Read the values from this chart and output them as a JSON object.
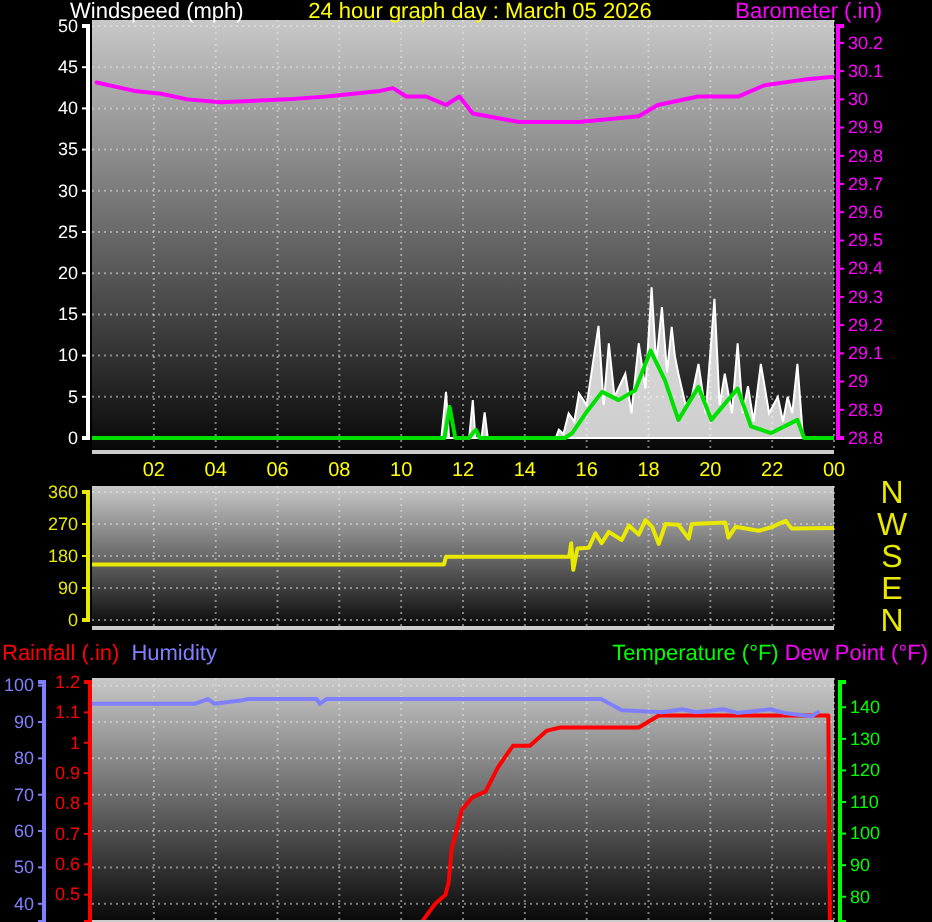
{
  "chart_data": [
    {
      "type": "line",
      "title": "24 hour graph day : March 05 2026",
      "ylabel": "Windspeed (mph)",
      "y2label": "Barometer (.in)",
      "xlim": [
        "2026-03-05T00:00",
        "2026-03-06T00:00"
      ],
      "xticks": [
        {
          "value": "2026-03-05T02:00",
          "label": "02"
        },
        {
          "value": "2026-03-05T04:00",
          "label": "04"
        },
        {
          "value": "2026-03-05T06:00",
          "label": "06"
        },
        {
          "value": "2026-03-05T08:00",
          "label": "08"
        },
        {
          "value": "2026-03-05T10:00",
          "label": "10"
        },
        {
          "value": "2026-03-05T12:00",
          "label": "12"
        },
        {
          "value": "2026-03-05T14:00",
          "label": "14"
        },
        {
          "value": "2026-03-05T16:00",
          "label": "16"
        },
        {
          "value": "2026-03-05T18:00",
          "label": "18"
        },
        {
          "value": "2026-03-05T20:00",
          "label": "20"
        },
        {
          "value": "2026-03-05T22:00",
          "label": "22"
        },
        {
          "value": "2026-03-06T00:00",
          "label": "00"
        }
      ],
      "ylim": [
        0,
        50
      ],
      "yticks": [
        0,
        5,
        10,
        15,
        20,
        25,
        30,
        35,
        40,
        45,
        50
      ],
      "y2lim": [
        28.8,
        30.26
      ],
      "y2ticks": [
        28.8,
        28.9,
        29,
        29.1,
        29.2,
        29.3,
        29.4,
        29.5,
        29.6,
        29.7,
        29.8,
        29.9,
        30,
        30.1,
        30.2
      ],
      "grid": true,
      "series": [
        {
          "type": "area",
          "color": "#ffffff",
          "x": [
            "2026-03-05T00:00",
            "2026-03-05T11:18",
            "2026-03-05T11:27",
            "2026-03-05T11:33",
            "2026-03-05T12:12",
            "2026-03-05T12:19",
            "2026-03-05T12:24",
            "2026-03-05T12:36",
            "2026-03-05T12:42",
            "2026-03-05T12:48",
            "2026-03-05T15:00",
            "2026-03-05T15:06",
            "2026-03-05T15:15",
            "2026-03-05T15:25",
            "2026-03-05T15:36",
            "2026-03-05T15:45",
            "2026-03-05T16:00",
            "2026-03-05T16:23",
            "2026-03-05T16:33",
            "2026-03-05T16:43",
            "2026-03-05T16:54",
            "2026-03-05T17:15",
            "2026-03-05T17:27",
            "2026-03-05T17:41",
            "2026-03-05T17:54",
            "2026-03-05T18:06",
            "2026-03-05T18:15",
            "2026-03-05T18:26",
            "2026-03-05T18:36",
            "2026-03-05T18:45",
            "2026-03-05T18:51",
            "2026-03-05T18:58",
            "2026-03-05T19:12",
            "2026-03-05T19:24",
            "2026-03-05T19:37",
            "2026-03-05T19:51",
            "2026-03-05T20:08",
            "2026-03-05T20:18",
            "2026-03-05T20:28",
            "2026-03-05T20:42",
            "2026-03-05T20:53",
            "2026-03-05T21:03",
            "2026-03-05T21:13",
            "2026-03-05T21:24",
            "2026-03-05T21:38",
            "2026-03-05T21:54",
            "2026-03-05T22:11",
            "2026-03-05T22:21",
            "2026-03-05T22:30",
            "2026-03-05T22:39",
            "2026-03-05T22:49",
            "2026-03-05T23:00",
            "2026-03-06T00:00"
          ],
          "values": [
            0,
            0,
            5.6,
            0,
            0,
            4.6,
            0,
            0,
            3.1,
            0,
            0,
            1,
            0.5,
            3,
            2,
            5.4,
            4,
            13.6,
            4,
            11.5,
            5,
            7.8,
            3,
            11.5,
            6,
            18.3,
            9,
            15.9,
            8,
            13.5,
            10,
            7.8,
            4,
            5,
            9,
            3,
            16.9,
            4,
            7.8,
            3,
            11.5,
            3,
            6.3,
            2,
            9,
            3,
            5,
            2,
            5,
            3,
            9,
            0,
            0
          ]
        },
        {
          "color": "#00e000",
          "x": [
            "2026-03-05T00:00",
            "2026-03-05T11:24",
            "2026-03-05T11:34",
            "2026-03-05T11:45",
            "2026-03-05T12:12",
            "2026-03-05T12:19",
            "2026-03-05T12:25",
            "2026-03-05T12:33",
            "2026-03-05T15:18",
            "2026-03-05T15:32",
            "2026-03-05T15:58",
            "2026-03-05T16:30",
            "2026-03-05T17:02",
            "2026-03-05T17:34",
            "2026-03-05T18:04",
            "2026-03-05T18:32",
            "2026-03-05T18:58",
            "2026-03-05T19:37",
            "2026-03-05T20:02",
            "2026-03-05T20:53",
            "2026-03-05T21:19",
            "2026-03-05T21:58",
            "2026-03-05T22:49",
            "2026-03-05T23:02",
            "2026-03-06T00:00"
          ],
          "values": [
            0,
            0,
            3.8,
            0,
            0,
            0.6,
            1,
            0,
            0,
            0.6,
            3,
            5.6,
            4.6,
            5.8,
            10.6,
            7,
            2.2,
            6.2,
            2.2,
            6,
            1.4,
            0.6,
            2.2,
            0,
            0
          ]
        },
        {
          "color": "#ff00ff",
          "axis": "y2",
          "x": [
            "2026-03-05T00:09",
            "2026-03-05T01:22",
            "2026-03-05T02:14",
            "2026-03-05T03:05",
            "2026-03-05T04:10",
            "2026-03-05T06:19",
            "2026-03-05T07:35",
            "2026-03-05T09:19",
            "2026-03-05T09:44",
            "2026-03-05T10:10",
            "2026-03-05T10:49",
            "2026-03-05T11:27",
            "2026-03-05T11:53",
            "2026-03-05T12:19",
            "2026-03-05T13:48",
            "2026-03-05T14:06",
            "2026-03-05T15:45",
            "2026-03-05T17:41",
            "2026-03-05T18:18",
            "2026-03-05T19:36",
            "2026-03-05T20:54",
            "2026-03-05T21:45",
            "2026-03-05T23:02",
            "2026-03-06T00:00"
          ],
          "values": [
            30.06,
            30.03,
            30.02,
            30.0,
            29.99,
            30.0,
            30.01,
            30.03,
            30.04,
            30.01,
            30.01,
            29.98,
            30.01,
            29.95,
            29.92,
            29.92,
            29.92,
            29.94,
            29.98,
            30.01,
            30.01,
            30.05,
            30.07,
            30.08
          ]
        }
      ]
    },
    {
      "type": "line",
      "xlim": [
        "2026-03-05T00:00",
        "2026-03-06T00:00"
      ],
      "xticks": [
        "2026-03-05T02:00",
        "2026-03-05T04:00",
        "2026-03-05T06:00",
        "2026-03-05T08:00",
        "2026-03-05T10:00",
        "2026-03-05T12:00",
        "2026-03-05T14:00",
        "2026-03-05T16:00",
        "2026-03-05T18:00",
        "2026-03-05T20:00",
        "2026-03-05T22:00",
        "2026-03-06T00:00"
      ],
      "ylim": [
        0,
        360
      ],
      "yticks": [
        0,
        90,
        180,
        270,
        360
      ],
      "annotations": [
        "N",
        "W",
        "S",
        "E",
        "N"
      ],
      "tick_labels": "y",
      "grid": true,
      "series": [
        {
          "color": "#e8e800",
          "x": [
            "2026-03-05T00:00",
            "2026-03-05T11:23",
            "2026-03-05T11:27",
            "2026-03-05T15:26",
            "2026-03-05T15:30",
            "2026-03-05T15:34",
            "2026-03-05T15:42",
            "2026-03-05T16:04",
            "2026-03-05T16:17",
            "2026-03-05T16:29",
            "2026-03-05T16:43",
            "2026-03-05T17:08",
            "2026-03-05T17:22",
            "2026-03-05T17:41",
            "2026-03-05T17:54",
            "2026-03-05T18:07",
            "2026-03-05T18:20",
            "2026-03-05T18:33",
            "2026-03-05T18:58",
            "2026-03-05T19:18",
            "2026-03-05T19:24",
            "2026-03-05T20:29",
            "2026-03-05T20:35",
            "2026-03-05T20:49",
            "2026-03-05T21:34",
            "2026-03-05T22:00",
            "2026-03-05T22:26",
            "2026-03-05T22:38",
            "2026-03-06T00:00"
          ],
          "values": [
            156,
            156,
            178,
            178,
            216,
            141,
            201,
            203,
            244,
            216,
            248,
            225,
            266,
            240,
            281,
            262,
            214,
            270,
            268,
            229,
            270,
            274,
            232,
            262,
            251,
            262,
            279,
            257,
            259
          ]
        }
      ]
    },
    {
      "type": "line",
      "xlim": [
        "2026-03-05T00:00",
        "2026-03-06T00:00"
      ],
      "xticks": [
        "2026-03-05T02:00",
        "2026-03-05T04:00",
        "2026-03-05T06:00",
        "2026-03-05T08:00",
        "2026-03-05T10:00",
        "2026-03-05T12:00",
        "2026-03-05T14:00",
        "2026-03-05T16:00",
        "2026-03-05T18:00",
        "2026-03-05T20:00",
        "2026-03-05T22:00",
        "2026-03-06T00:00"
      ],
      "ylim": [
        35,
        101
      ],
      "yticks": [
        40,
        50,
        60,
        70,
        80,
        90,
        100
      ],
      "y2lim": [
        0.41,
        1.2
      ],
      "y2ticks": [
        0.5,
        0.6,
        0.7,
        0.8,
        0.9,
        1,
        1.1,
        1.2
      ],
      "y3lim": [
        72,
        148
      ],
      "y3ticks": [
        80,
        90,
        100,
        110,
        120,
        130,
        140
      ],
      "tick_labels": "y",
      "grid": true,
      "legend": "top",
      "series": [
        {
          "name": "Rainfall (.in)",
          "color": "#ff0000",
          "axis": "y2",
          "x": [
            "2026-03-05T10:40",
            "2026-03-05T11:06",
            "2026-03-05T11:26",
            "2026-03-05T11:32",
            "2026-03-05T11:38",
            "2026-03-05T11:58",
            "2026-03-05T12:18",
            "2026-03-05T12:44",
            "2026-03-05T13:08",
            "2026-03-05T13:37",
            "2026-03-05T14:10",
            "2026-03-05T14:43",
            "2026-03-05T15:09",
            "2026-03-05T17:41",
            "2026-03-05T18:20",
            "2026-03-05T23:49",
            "2026-03-05T23:52"
          ],
          "values": [
            0.41,
            0.47,
            0.5,
            0.54,
            0.65,
            0.78,
            0.82,
            0.84,
            0.92,
            0.99,
            0.99,
            1.04,
            1.05,
            1.05,
            1.09,
            1.09,
            0.41
          ]
        },
        {
          "name": "Humidity",
          "color": "#8080ff",
          "axis": "y",
          "x": [
            "2026-03-05T00:00",
            "2026-03-05T03:19",
            "2026-03-05T03:45",
            "2026-03-05T03:58",
            "2026-03-05T04:51",
            "2026-03-05T05:04",
            "2026-03-05T07:16",
            "2026-03-05T07:22",
            "2026-03-05T07:35",
            "2026-03-05T16:28",
            "2026-03-05T17:08",
            "2026-03-05T18:26",
            "2026-03-05T19:06",
            "2026-03-05T19:32",
            "2026-03-05T20:25",
            "2026-03-05T20:52",
            "2026-03-05T21:57",
            "2026-03-05T22:23",
            "2026-03-05T23:16",
            "2026-03-05T23:29"
          ],
          "values": [
            95,
            95,
            96.3,
            95,
            96,
            96.3,
            96.3,
            95,
            96.3,
            96.3,
            93.2,
            92.7,
            93.5,
            92.7,
            93.5,
            92.5,
            93.5,
            92.5,
            91.6,
            92.7
          ]
        },
        {
          "name": "Temperature (°F)",
          "color": "#00ff00",
          "axis": "y3"
        },
        {
          "name": "Dew Point (°F)",
          "color": "#ff00ff",
          "axis": "y3"
        }
      ]
    }
  ]
}
